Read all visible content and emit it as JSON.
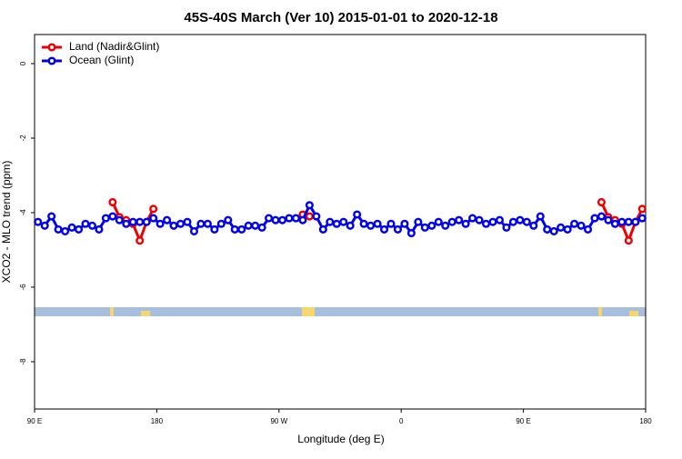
{
  "chart_data": {
    "type": "line",
    "title": "45S-40S March (Ver 10)   2015-01-01 to 2020-12-18",
    "x_label": "Longitude (deg E)",
    "y_label": "XCO2 - MLO trend (ppm)",
    "x": [
      92.5,
      97.5,
      102.5,
      107.5,
      112.5,
      117.5,
      122.5,
      127.5,
      132.5,
      137.5,
      142.5,
      147.5,
      152.5,
      157.5,
      162.5,
      167.5,
      172.5,
      177.5,
      182.5,
      187.5,
      192.5,
      197.5,
      202.5,
      207.5,
      212.5,
      217.5,
      222.5,
      227.5,
      232.5,
      237.5,
      242.5,
      247.5,
      252.5,
      257.5,
      262.5,
      267.5,
      272.5,
      277.5,
      282.5,
      287.5,
      292.5,
      297.5,
      302.5,
      307.5,
      312.5,
      317.5,
      322.5,
      327.5,
      332.5,
      337.5,
      342.5,
      347.5,
      352.5,
      357.5,
      362.5,
      367.5,
      372.5,
      377.5,
      382.5,
      387.5,
      392.5,
      397.5,
      402.5,
      407.5,
      412.5,
      417.5,
      422.5,
      427.5,
      432.5,
      437.5,
      442.5,
      447.5,
      452.5,
      457.5,
      462.5,
      467.5,
      472.5,
      477.5,
      482.5,
      487.5,
      492.5,
      497.5,
      502.5,
      507.5,
      512.5,
      517.5,
      522.5,
      527.5,
      532.5,
      537.5
    ],
    "series": [
      {
        "name": "Land (Nadir&Glint)",
        "color": "#ee0000",
        "values": [
          null,
          null,
          null,
          null,
          null,
          null,
          null,
          null,
          null,
          null,
          null,
          -3.72,
          -4.12,
          -4.2,
          -4.3,
          -4.75,
          -4.25,
          -3.9,
          null,
          null,
          null,
          null,
          null,
          null,
          null,
          null,
          null,
          null,
          null,
          null,
          null,
          null,
          null,
          null,
          null,
          null,
          null,
          null,
          null,
          -4.05,
          -4.1,
          null,
          null,
          null,
          null,
          null,
          null,
          null,
          null,
          null,
          null,
          null,
          null,
          null,
          null,
          null,
          null,
          null,
          null,
          null,
          null,
          null,
          null,
          null,
          null,
          null,
          null,
          null,
          null,
          null,
          null,
          null,
          null,
          null,
          null,
          null,
          null,
          null,
          null,
          null,
          null,
          null,
          null,
          -3.72,
          -4.12,
          -4.2,
          -4.3,
          -4.75,
          -4.25,
          -3.9
        ]
      },
      {
        "name": "Ocean (Glint)",
        "color": "#0000ee",
        "values": [
          -4.25,
          -4.35,
          -4.1,
          -4.45,
          -4.5,
          -4.4,
          -4.45,
          -4.3,
          -4.35,
          -4.45,
          -4.15,
          -4.1,
          -4.2,
          -4.3,
          -4.25,
          -4.25,
          -4.25,
          -4.15,
          -4.3,
          -4.2,
          -4.35,
          -4.3,
          -4.25,
          -4.5,
          -4.3,
          -4.3,
          -4.45,
          -4.3,
          -4.2,
          -4.45,
          -4.45,
          -4.35,
          -4.35,
          -4.4,
          -4.15,
          -4.2,
          -4.2,
          -4.15,
          -4.15,
          -4.2,
          -3.8,
          -4.1,
          -4.45,
          -4.25,
          -4.3,
          -4.25,
          -4.35,
          -4.05,
          -4.3,
          -4.35,
          -4.3,
          -4.45,
          -4.3,
          -4.45,
          -4.3,
          -4.55,
          -4.25,
          -4.4,
          -4.35,
          -4.25,
          -4.35,
          -4.25,
          -4.2,
          -4.3,
          -4.15,
          -4.2,
          -4.3,
          -4.25,
          -4.2,
          -4.4,
          -4.25,
          -4.2,
          -4.25,
          -4.35,
          -4.1,
          -4.45,
          -4.5,
          -4.4,
          -4.45,
          -4.3,
          -4.35,
          -4.45,
          -4.15,
          -4.1,
          -4.2,
          -4.3,
          -4.25,
          -4.25,
          -4.25,
          -4.15
        ]
      }
    ],
    "xlim": [
      90,
      540
    ],
    "xticks": [
      {
        "value": 90,
        "label": "90 E"
      },
      180,
      {
        "value": 270,
        "label": "90 W"
      },
      {
        "value": 360,
        "label": "0"
      },
      {
        "value": 450,
        "label": "90 E"
      },
      {
        "value": 540,
        "label": "180"
      }
    ],
    "ylim": [
      -9.27,
      0.78
    ],
    "yticks": [
      0,
      -2,
      -4,
      -6,
      -8
    ],
    "legend": "top-left"
  }
}
